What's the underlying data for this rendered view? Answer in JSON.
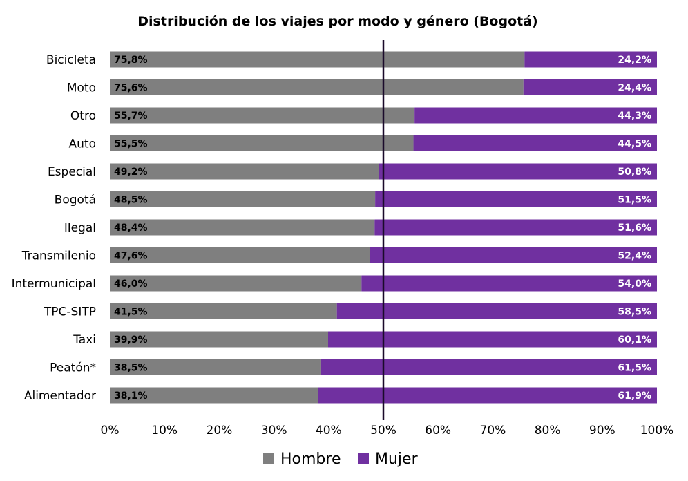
{
  "chart_data": {
    "type": "bar",
    "orientation": "horizontal",
    "stacked": "100%",
    "title": "Distribución de los viajes por modo y género (Bogotá)",
    "categories": [
      "Bicicleta",
      "Moto",
      "Otro",
      "Auto",
      "Especial",
      "Bogotá",
      "Ilegal",
      "Transmilenio",
      "Intermunicipal",
      "TPC-SITP",
      "Taxi",
      "Peatón*",
      "Alimentador"
    ],
    "series": [
      {
        "name": "Hombre",
        "color": "#7f7f7f",
        "values": [
          75.8,
          75.6,
          55.7,
          55.5,
          49.2,
          48.5,
          48.4,
          47.6,
          46.0,
          41.5,
          39.9,
          38.5,
          38.1
        ],
        "labels": [
          "75,8%",
          "75,6%",
          "55,7%",
          "55,5%",
          "49,2%",
          "48,5%",
          "48,4%",
          "47,6%",
          "46,0%",
          "41,5%",
          "39,9%",
          "38,5%",
          "38,1%"
        ]
      },
      {
        "name": "Mujer",
        "color": "#7030a0",
        "values": [
          24.2,
          24.4,
          44.3,
          44.5,
          50.8,
          51.5,
          51.6,
          52.4,
          54.0,
          58.5,
          60.1,
          61.5,
          61.9
        ],
        "labels": [
          "24,2%",
          "24,4%",
          "44,3%",
          "44,5%",
          "50,8%",
          "51,5%",
          "51,6%",
          "52,4%",
          "54,0%",
          "58,5%",
          "60,1%",
          "61,5%",
          "61,9%"
        ]
      }
    ],
    "xlim": [
      0,
      100
    ],
    "xticks": [
      "0%",
      "10%",
      "20%",
      "30%",
      "40%",
      "50%",
      "60%",
      "70%",
      "80%",
      "90%",
      "100%"
    ],
    "reference_line": {
      "value": 50,
      "color": "#1a0a2a"
    },
    "grid": false,
    "legend": {
      "position": "bottom"
    }
  }
}
